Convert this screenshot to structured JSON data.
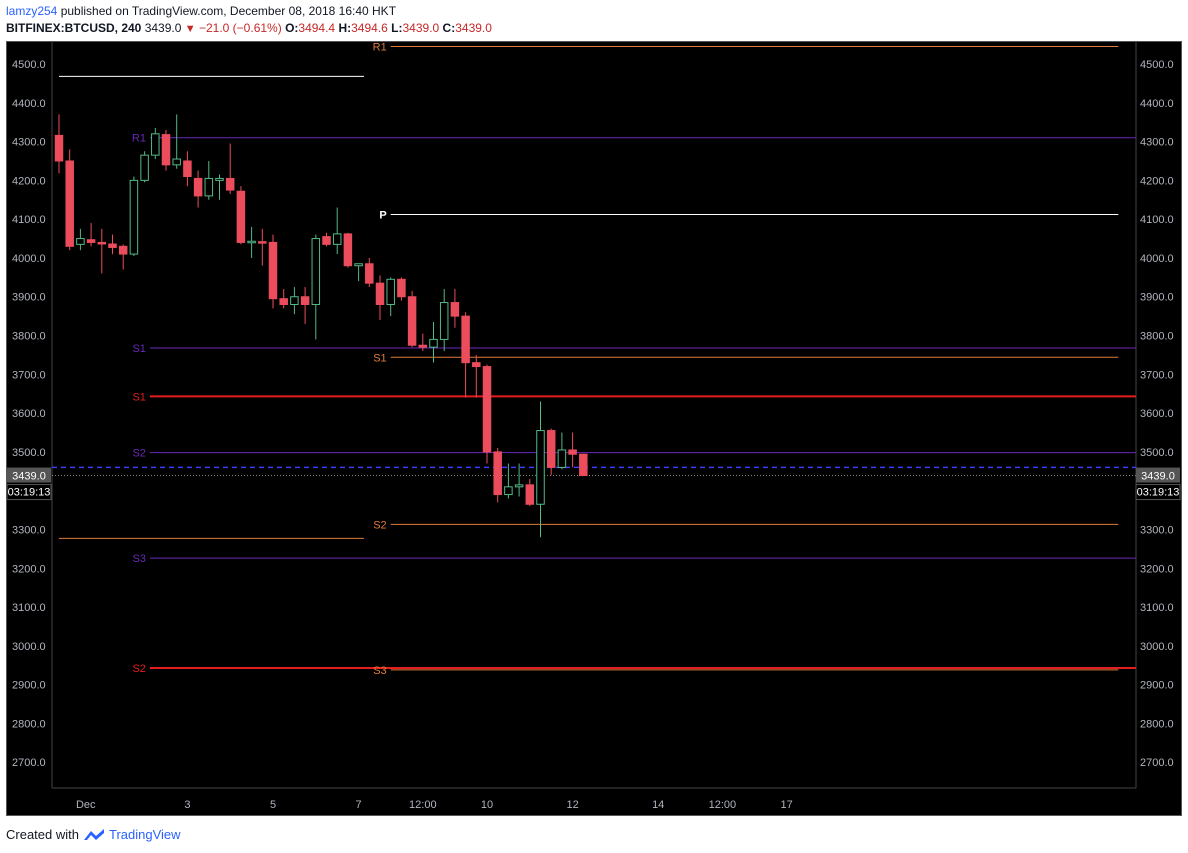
{
  "header": {
    "user": "lamzy254",
    "published": "published on TradingView.com, December 08, 2018 16:40 HKT",
    "symbol": "BITFINEX:BTCUSD, 240",
    "last": "3439.0",
    "change": "−21.0 (−0.61%)",
    "o_label": "O:",
    "o_value": "3494.4",
    "h_label": "H:",
    "h_value": "3494.6",
    "l_label": "L:",
    "l_value": "3439.0",
    "c_label": "C:",
    "c_value": "3439.0"
  },
  "footer": {
    "created_with": "Created with",
    "brand": "TradingView"
  },
  "chart_data": {
    "type": "candlestick",
    "symbol": "BITFINEX:BTCUSD",
    "interval": "240",
    "ylim": [
      2620,
      4550
    ],
    "y_ticks": [
      2700,
      2800,
      2900,
      3000,
      3100,
      3200,
      3300,
      3400,
      3500,
      3600,
      3700,
      3800,
      3900,
      4000,
      4100,
      4200,
      4300,
      4400,
      4500
    ],
    "x_ticks": [
      "Dec",
      "3",
      "5",
      "7",
      "12:00",
      "10",
      "12",
      "14",
      "12:00",
      "17"
    ],
    "x_tick_units": [
      2.5,
      12,
      20,
      28,
      34,
      40,
      48,
      56,
      62,
      68
    ],
    "price_label": "3439.0",
    "countdown": "03:19:13",
    "colors": {
      "up": "#53b987",
      "down": "#eb4d5c",
      "background": "#000000",
      "axis_text": "#b2b5be"
    },
    "candles": [
      {
        "o": 4316,
        "h": 4370,
        "l": 4218,
        "c": 4250
      },
      {
        "o": 4250,
        "h": 4280,
        "l": 4020,
        "c": 4030
      },
      {
        "o": 4035,
        "h": 4075,
        "l": 4020,
        "c": 4050
      },
      {
        "o": 4047,
        "h": 4090,
        "l": 4030,
        "c": 4040
      },
      {
        "o": 4040,
        "h": 4075,
        "l": 3960,
        "c": 4036
      },
      {
        "o": 4036,
        "h": 4060,
        "l": 4010,
        "c": 4027
      },
      {
        "o": 4030,
        "h": 4035,
        "l": 3970,
        "c": 4010
      },
      {
        "o": 4010,
        "h": 4210,
        "l": 4005,
        "c": 4200
      },
      {
        "o": 4200,
        "h": 4275,
        "l": 4195,
        "c": 4265
      },
      {
        "o": 4265,
        "h": 4335,
        "l": 4255,
        "c": 4320
      },
      {
        "o": 4318,
        "h": 4330,
        "l": 4225,
        "c": 4240
      },
      {
        "o": 4240,
        "h": 4370,
        "l": 4230,
        "c": 4255
      },
      {
        "o": 4250,
        "h": 4275,
        "l": 4185,
        "c": 4210
      },
      {
        "o": 4205,
        "h": 4225,
        "l": 4130,
        "c": 4160
      },
      {
        "o": 4160,
        "h": 4250,
        "l": 4150,
        "c": 4205
      },
      {
        "o": 4200,
        "h": 4215,
        "l": 4150,
        "c": 4205
      },
      {
        "o": 4205,
        "h": 4295,
        "l": 4165,
        "c": 4175
      },
      {
        "o": 4172,
        "h": 4185,
        "l": 4035,
        "c": 4040
      },
      {
        "o": 4040,
        "h": 4080,
        "l": 4000,
        "c": 4043
      },
      {
        "o": 4042,
        "h": 4075,
        "l": 3980,
        "c": 4040
      },
      {
        "o": 4040,
        "h": 4060,
        "l": 3870,
        "c": 3895
      },
      {
        "o": 3895,
        "h": 3920,
        "l": 3870,
        "c": 3880
      },
      {
        "o": 3880,
        "h": 3925,
        "l": 3855,
        "c": 3900
      },
      {
        "o": 3900,
        "h": 3925,
        "l": 3830,
        "c": 3880
      },
      {
        "o": 3880,
        "h": 4060,
        "l": 3790,
        "c": 4050
      },
      {
        "o": 4055,
        "h": 4065,
        "l": 4030,
        "c": 4035
      },
      {
        "o": 4035,
        "h": 4130,
        "l": 4010,
        "c": 4062
      },
      {
        "o": 4062,
        "h": 4065,
        "l": 3975,
        "c": 3980
      },
      {
        "o": 3980,
        "h": 3985,
        "l": 3940,
        "c": 3985
      },
      {
        "o": 3985,
        "h": 4000,
        "l": 3925,
        "c": 3935
      },
      {
        "o": 3935,
        "h": 3955,
        "l": 3840,
        "c": 3880
      },
      {
        "o": 3880,
        "h": 3950,
        "l": 3850,
        "c": 3945
      },
      {
        "o": 3945,
        "h": 3950,
        "l": 3890,
        "c": 3900
      },
      {
        "o": 3900,
        "h": 3915,
        "l": 3770,
        "c": 3775
      },
      {
        "o": 3775,
        "h": 3805,
        "l": 3760,
        "c": 3770
      },
      {
        "o": 3770,
        "h": 3835,
        "l": 3730,
        "c": 3790
      },
      {
        "o": 3790,
        "h": 3920,
        "l": 3760,
        "c": 3885
      },
      {
        "o": 3885,
        "h": 3920,
        "l": 3820,
        "c": 3850
      },
      {
        "o": 3850,
        "h": 3860,
        "l": 3640,
        "c": 3730
      },
      {
        "o": 3730,
        "h": 3750,
        "l": 3640,
        "c": 3720
      },
      {
        "o": 3720,
        "h": 3725,
        "l": 3470,
        "c": 3500
      },
      {
        "o": 3500,
        "h": 3510,
        "l": 3370,
        "c": 3390
      },
      {
        "o": 3390,
        "h": 3470,
        "l": 3380,
        "c": 3410
      },
      {
        "o": 3410,
        "h": 3470,
        "l": 3385,
        "c": 3415
      },
      {
        "o": 3415,
        "h": 3430,
        "l": 3360,
        "c": 3365
      },
      {
        "o": 3365,
        "h": 3630,
        "l": 3280,
        "c": 3555
      },
      {
        "o": 3555,
        "h": 3560,
        "l": 3440,
        "c": 3460
      },
      {
        "o": 3460,
        "h": 3550,
        "l": 3455,
        "c": 3505
      },
      {
        "o": 3505,
        "h": 3550,
        "l": 3460,
        "c": 3494
      },
      {
        "o": 3494,
        "h": 3495,
        "l": 3439,
        "c": 3439
      }
    ],
    "pivot_levels": [
      {
        "label": "R1",
        "value": 4545,
        "color": "#e07b39",
        "x_start": 31,
        "x_end": 99,
        "label_side": "left"
      },
      {
        "label": "",
        "value": 4468,
        "color": "#ffffff",
        "x_start": 0,
        "x_end": 28.5,
        "label_side": "left"
      },
      {
        "label": "R1",
        "value": 4310,
        "color": "#6a28b8",
        "x_start": 8.5,
        "x_end": 165,
        "label_side": "left"
      },
      {
        "label": "P",
        "value": 4112,
        "color": "#ffffff",
        "x_start": 31,
        "x_end": 99,
        "label_side": "left"
      },
      {
        "label": "S1",
        "value": 3768,
        "color": "#6a28b8",
        "x_start": 8.5,
        "x_end": 165,
        "label_side": "left"
      },
      {
        "label": "S1",
        "value": 3744,
        "color": "#e07b39",
        "x_start": 31,
        "x_end": 99,
        "label_side": "left"
      },
      {
        "label": "S1",
        "value": 3643,
        "color": "#e41e1e",
        "x_start": 8.5,
        "x_end": 165,
        "label_side": "left"
      },
      {
        "label": "S2",
        "value": 3498,
        "color": "#6a28b8",
        "x_start": 8.5,
        "x_end": 165,
        "label_side": "left"
      },
      {
        "label": "S2",
        "value": 3313,
        "color": "#e07b39",
        "x_start": 31,
        "x_end": 99,
        "label_side": "left"
      },
      {
        "label": "",
        "value": 3277,
        "color": "#e07b39",
        "x_start": 0,
        "x_end": 28.5,
        "label_side": "left"
      },
      {
        "label": "S3",
        "value": 3226,
        "color": "#6a28b8",
        "x_start": 8.5,
        "x_end": 165,
        "label_side": "left"
      },
      {
        "label": "S2",
        "value": 2943,
        "color": "#e41e1e",
        "x_start": 8.5,
        "x_end": 165,
        "label_side": "left"
      },
      {
        "label": "S3",
        "value": 2938,
        "color": "#e07b39",
        "x_start": 31,
        "x_end": 99,
        "label_side": "left"
      }
    ],
    "current_price_line": {
      "value": 3460,
      "color": "#3c3cff"
    }
  }
}
